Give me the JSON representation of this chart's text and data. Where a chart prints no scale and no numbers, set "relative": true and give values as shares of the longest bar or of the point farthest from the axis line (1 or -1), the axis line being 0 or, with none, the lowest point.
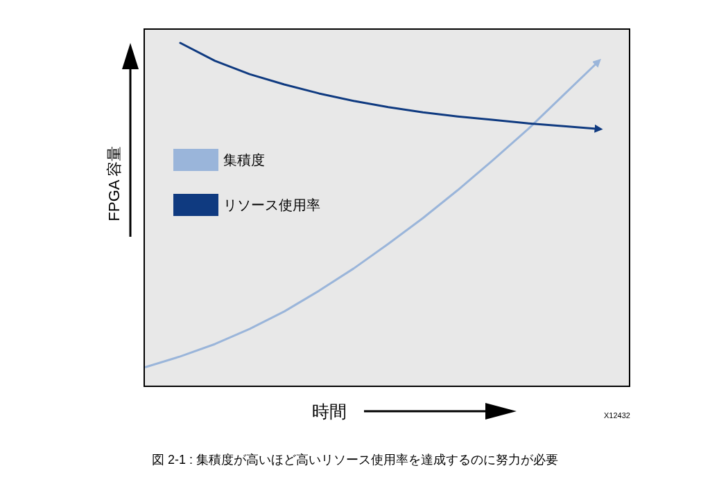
{
  "chart_data": {
    "type": "line",
    "relative": true,
    "xlabel": "時間",
    "ylabel": "FPGA 容量",
    "legend": "left",
    "categories": [
      null,
      null,
      null,
      null,
      null,
      null,
      null,
      null,
      null,
      null,
      null,
      null,
      null,
      null
    ],
    "series": [
      {
        "name": "集積度",
        "color": "#9ab5da",
        "values": [
          0.056,
          0.087,
          0.123,
          0.167,
          0.218,
          0.278,
          0.343,
          0.415,
          0.49,
          0.571,
          0.657,
          0.746,
          0.843,
          0.94
        ]
      },
      {
        "name": "リソース使用率",
        "color": "#0f3a80",
        "values": [
          null,
          1.0,
          0.948,
          0.909,
          0.879,
          0.853,
          0.831,
          0.813,
          0.798,
          0.786,
          0.776,
          0.766,
          0.758,
          0.75
        ]
      }
    ],
    "annotations": [
      "X12432",
      "図 2-1 : 集積度が高いほど高いリソース使用率を達成するのに努力が必要"
    ]
  }
}
